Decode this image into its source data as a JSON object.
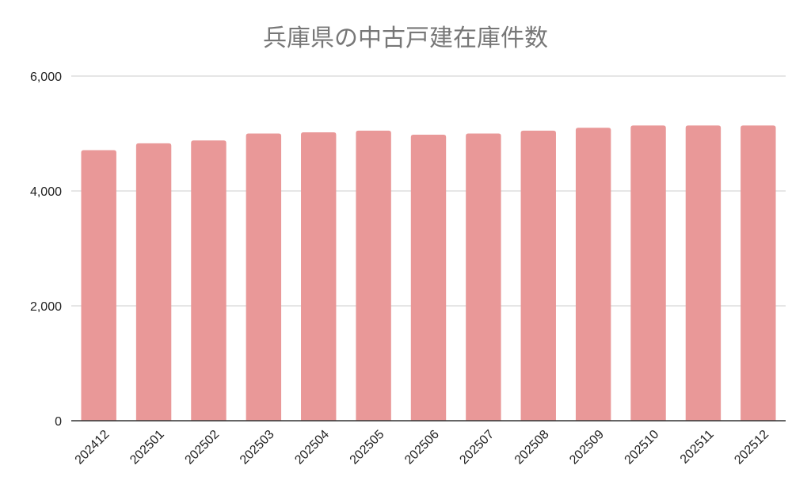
{
  "chart_data": {
    "type": "bar",
    "title": "兵庫県の中古戸建在庫件数",
    "xlabel": "",
    "ylabel": "",
    "categories": [
      "202412",
      "202501",
      "202502",
      "202503",
      "202504",
      "202505",
      "202506",
      "202507",
      "202508",
      "202509",
      "202510",
      "202511",
      "202512"
    ],
    "values": [
      4710,
      4830,
      4880,
      5000,
      5020,
      5050,
      4980,
      5000,
      5050,
      5100,
      5140,
      5140,
      5140
    ],
    "ylim": [
      0,
      6000
    ],
    "yticks": [
      0,
      2000,
      4000,
      6000
    ],
    "ytick_labels": [
      "0",
      "2,000",
      "4,000",
      "6,000"
    ],
    "bar_color": "#e99898",
    "grid": true,
    "legend": "none"
  }
}
